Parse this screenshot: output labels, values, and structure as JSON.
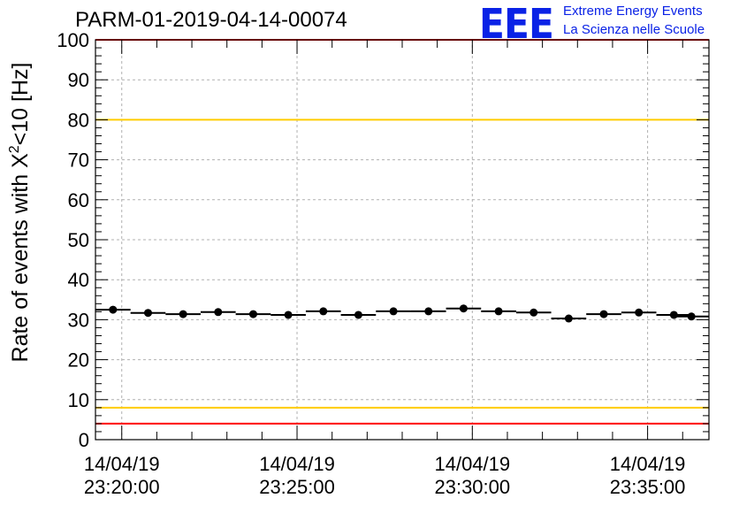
{
  "plot_title": "PARM-01-2019-04-14-00074",
  "logo": {
    "mark": "EEE",
    "line1": "Extreme Energy Events",
    "line2": "La Scienza nelle Scuole"
  },
  "colors": {
    "red_threshold": "#ff0000",
    "yellow_threshold": "#ffcc00",
    "markers": "#000000",
    "grid": "#b0b0b0",
    "logo_blue": "#0a22e6"
  },
  "chart_data": {
    "type": "scatter",
    "title": "PARM-01-2019-04-14-00074",
    "ylabel": "Rate of events with X²<10 [Hz]",
    "ylabel_parts": {
      "prefix": "Rate of events with X",
      "superscript": "2",
      "suffix": "<10 [Hz]"
    },
    "xlabel": "",
    "x_units": "minutes since 23:20:00",
    "xlim": [
      -0.75,
      16.75
    ],
    "ylim": [
      0,
      100
    ],
    "y_ticks": [
      "0",
      "10",
      "20",
      "30",
      "40",
      "50",
      "60",
      "70",
      "80",
      "90",
      "100"
    ],
    "y_tick_values": [
      0,
      10,
      20,
      30,
      40,
      50,
      60,
      70,
      80,
      90,
      100
    ],
    "x_ticks": [
      {
        "value": 0,
        "date": "14/04/19",
        "time": "23:20:00"
      },
      {
        "value": 5,
        "date": "14/04/19",
        "time": "23:25:00"
      },
      {
        "value": 10,
        "date": "14/04/19",
        "time": "23:30:00"
      },
      {
        "value": 15,
        "date": "14/04/19",
        "time": "23:35:00"
      }
    ],
    "grid": true,
    "bin_width": 1,
    "series": [
      {
        "name": "rate",
        "x": [
          -0.25,
          0.75,
          1.75,
          2.75,
          3.75,
          4.75,
          5.75,
          6.75,
          7.75,
          8.75,
          9.75,
          10.75,
          11.75,
          12.75,
          13.75,
          14.75,
          15.75,
          16.25
        ],
        "y": [
          32.5,
          31.7,
          31.4,
          31.9,
          31.4,
          31.2,
          32.1,
          31.2,
          32.1,
          32.1,
          32.8,
          32.1,
          31.8,
          30.3,
          31.4,
          31.8,
          31.2,
          30.8
        ]
      }
    ],
    "thresholds": [
      {
        "name": "upper-red",
        "y": 100,
        "color": "red"
      },
      {
        "name": "upper-yellow",
        "y": 80,
        "color": "yellow"
      },
      {
        "name": "lower-yellow",
        "y": 8,
        "color": "yellow"
      },
      {
        "name": "lower-red",
        "y": 4,
        "color": "red"
      }
    ]
  }
}
